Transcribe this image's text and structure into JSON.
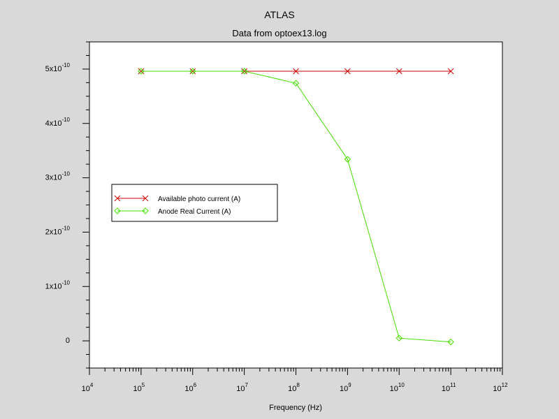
{
  "chart_data": {
    "type": "line",
    "title": "ATLAS",
    "subtitle": "Data from optoex13.log",
    "xlabel": "Frequency (Hz)",
    "ylabel": "",
    "x_scale": "log",
    "xlim": [
      10000,
      1000000000000
    ],
    "ylim": [
      -5e-11,
      5.5e-10
    ],
    "grid": false,
    "legend_position": "center-left",
    "x_tick_labels": [
      {
        "base": "10",
        "exp": "4",
        "value": 10000
      },
      {
        "base": "10",
        "exp": "5",
        "value": 100000
      },
      {
        "base": "10",
        "exp": "6",
        "value": 1000000
      },
      {
        "base": "10",
        "exp": "7",
        "value": 10000000
      },
      {
        "base": "10",
        "exp": "8",
        "value": 100000000
      },
      {
        "base": "10",
        "exp": "9",
        "value": 1000000000
      },
      {
        "base": "10",
        "exp": "10",
        "value": 10000000000
      },
      {
        "base": "10",
        "exp": "11",
        "value": 100000000000
      },
      {
        "base": "10",
        "exp": "12",
        "value": 1000000000000
      }
    ],
    "y_tick_labels": [
      {
        "base": "0",
        "exp": "",
        "value": 0
      },
      {
        "base": "1x10",
        "exp": "-10",
        "value": 1e-10
      },
      {
        "base": "2x10",
        "exp": "-10",
        "value": 2e-10
      },
      {
        "base": "3x10",
        "exp": "-10",
        "value": 3e-10
      },
      {
        "base": "4x10",
        "exp": "-10",
        "value": 4e-10
      },
      {
        "base": "5x10",
        "exp": "-10",
        "value": 5e-10
      }
    ],
    "series": [
      {
        "name": "Available photo current (A)",
        "color": "#cc0000",
        "marker": "x",
        "x": [
          100000,
          1000000,
          10000000,
          100000000,
          1000000000,
          10000000000,
          100000000000
        ],
        "y": [
          4.96e-10,
          4.96e-10,
          4.96e-10,
          4.96e-10,
          4.96e-10,
          4.96e-10,
          4.96e-10
        ]
      },
      {
        "name": "Anode Real Current (A)",
        "color": "#44dd00",
        "marker": "diamond",
        "x": [
          100000,
          1000000,
          10000000,
          100000000,
          1000000000,
          10000000000,
          100000000000
        ],
        "y": [
          4.96e-10,
          4.96e-10,
          4.96e-10,
          4.74e-10,
          3.34e-10,
          5e-12,
          -2e-12
        ]
      }
    ]
  }
}
